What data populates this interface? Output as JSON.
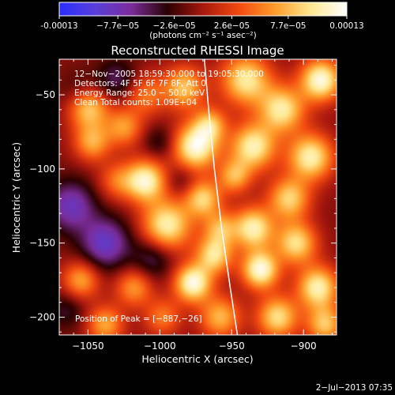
{
  "colorbar": {
    "tick_labels": [
      "-0.00013",
      "−7.7e−05",
      "−2.6e−05",
      "2.6e−05",
      "7.7e−05",
      "0.00013"
    ],
    "tick_values": [
      -0.00013,
      -7.7e-05,
      -2.6e-05,
      2.6e-05,
      7.7e-05,
      0.00013
    ],
    "range": [
      -0.00013,
      0.00013
    ],
    "units_label": "(photons cm⁻² s⁻¹ asec⁻²)",
    "colors": [
      "#2a2dff",
      "#5a3fd8",
      "#7a2d9a",
      "#2a0000",
      "#a8180e",
      "#f24a10",
      "#ff9c2a",
      "#ffe890",
      "#ffffff"
    ]
  },
  "chart_data": {
    "type": "heatmap",
    "title": "Reconstructed RHESSI Image",
    "xlabel": "Heliocentric X (arcsec)",
    "ylabel": "Heliocentric Y (arcsec)",
    "xlim": [
      -1070,
      -877
    ],
    "ylim": [
      -212,
      -26
    ],
    "x_ticks": [
      -1050,
      -1000,
      -950,
      -900
    ],
    "y_ticks": [
      -50,
      -100,
      -150,
      -200
    ],
    "x_tick_labels": [
      "−1050",
      "−1000",
      "−950",
      "−900"
    ],
    "y_tick_labels": [
      "−50",
      "−100",
      "−150",
      "−200"
    ],
    "info_lines": [
      "12−Nov−2005 18:59:30.000 to 19:05:30.000",
      "Detectors: 4F 5F 6F 7F 8F, Att 0",
      "Energy Range: 25.0 − 50.0 keV",
      "Clean    Total counts: 1.09E+04"
    ],
    "peak_label": "Position of Peak = [−887,−26]",
    "peak_position": [
      -887,
      -26
    ],
    "limb_curve": [
      [
        -969,
        -26
      ],
      [
        -966,
        -60
      ],
      [
        -962,
        -100
      ],
      [
        -957,
        -140
      ],
      [
        -951,
        -180
      ],
      [
        -946,
        -212
      ]
    ],
    "blobs": [
      {
        "x": -1050,
        "y": -58,
        "v": 0.85,
        "w": 10
      },
      {
        "x": -1047,
        "y": -82,
        "v": 0.6,
        "w": 9
      },
      {
        "x": -1025,
        "y": -72,
        "v": 0.55,
        "w": 9
      },
      {
        "x": -1010,
        "y": -50,
        "v": 0.45,
        "w": 10
      },
      {
        "x": -975,
        "y": -85,
        "v": 1.0,
        "w": 11
      },
      {
        "x": -983,
        "y": -45,
        "v": 0.7,
        "w": 10
      },
      {
        "x": -965,
        "y": -70,
        "v": 0.6,
        "w": 8
      },
      {
        "x": -1010,
        "y": -108,
        "v": 0.95,
        "w": 10
      },
      {
        "x": -995,
        "y": -138,
        "v": 0.9,
        "w": 12
      },
      {
        "x": -970,
        "y": -120,
        "v": 0.75,
        "w": 9
      },
      {
        "x": -958,
        "y": -140,
        "v": 0.55,
        "w": 8
      },
      {
        "x": -1030,
        "y": -108,
        "v": 0.4,
        "w": 9
      },
      {
        "x": -1055,
        "y": -175,
        "v": 0.6,
        "w": 9
      },
      {
        "x": -1018,
        "y": -180,
        "v": 0.55,
        "w": 9
      },
      {
        "x": -1038,
        "y": -205,
        "v": 0.6,
        "w": 9
      },
      {
        "x": -998,
        "y": -200,
        "v": 0.45,
        "w": 9
      },
      {
        "x": -977,
        "y": -177,
        "v": 1.0,
        "w": 9
      },
      {
        "x": -962,
        "y": -158,
        "v": 0.8,
        "w": 9
      },
      {
        "x": -958,
        "y": -200,
        "v": 0.65,
        "w": 10
      },
      {
        "x": -940,
        "y": -40,
        "v": 0.85,
        "w": 12
      },
      {
        "x": -935,
        "y": -85,
        "v": 0.9,
        "w": 11
      },
      {
        "x": -915,
        "y": -60,
        "v": 0.85,
        "w": 11
      },
      {
        "x": -888,
        "y": -40,
        "v": 1.0,
        "w": 10
      },
      {
        "x": -895,
        "y": -92,
        "v": 0.9,
        "w": 11
      },
      {
        "x": -910,
        "y": -120,
        "v": 0.75,
        "w": 10
      },
      {
        "x": -935,
        "y": -140,
        "v": 0.9,
        "w": 10
      },
      {
        "x": -930,
        "y": -168,
        "v": 1.0,
        "w": 9
      },
      {
        "x": -905,
        "y": -150,
        "v": 0.8,
        "w": 10
      },
      {
        "x": -890,
        "y": -180,
        "v": 0.9,
        "w": 10
      },
      {
        "x": -918,
        "y": -200,
        "v": 0.8,
        "w": 10
      },
      {
        "x": -885,
        "y": -205,
        "v": 0.7,
        "w": 9
      },
      {
        "x": -948,
        "y": -105,
        "v": 0.6,
        "w": 8
      },
      {
        "x": -1062,
        "y": -125,
        "v": -0.55,
        "w": 12
      },
      {
        "x": -1038,
        "y": -150,
        "v": -0.6,
        "w": 12
      },
      {
        "x": -1055,
        "y": -50,
        "v": -0.3,
        "w": 10
      },
      {
        "x": -1005,
        "y": -160,
        "v": -0.35,
        "w": 10
      },
      {
        "x": -985,
        "y": -108,
        "v": -0.2,
        "w": 8
      },
      {
        "x": -1030,
        "y": -40,
        "v": -0.35,
        "w": 10
      },
      {
        "x": -1065,
        "y": -195,
        "v": -0.25,
        "w": 9
      },
      {
        "x": -1000,
        "y": -82,
        "v": -0.25,
        "w": 8
      }
    ]
  },
  "footer": {
    "date": "2−Jul−2013 07:35"
  }
}
